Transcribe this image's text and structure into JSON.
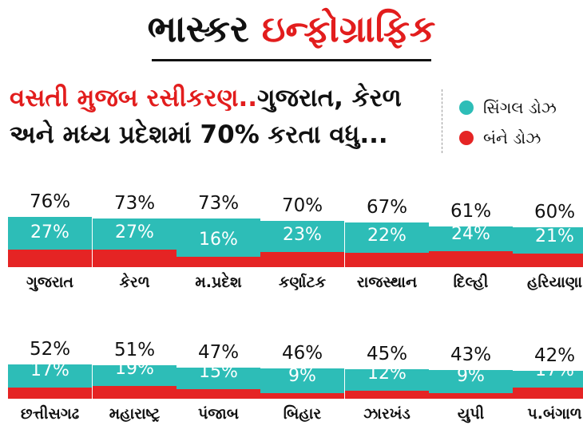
{
  "brand": {
    "part1": "ભાસ્કર",
    "part2": "ઇન્ફોગ્રાફિક"
  },
  "headline": {
    "red": "વસતી મુજબ રસીકરણ..",
    "black": "ગુજરાત, કેરળ અને મધ્ય પ્રદેશમાં 70% કરતા વધુ..."
  },
  "legend": [
    {
      "label": "સિંગલ ડોઝ",
      "color": "#2dbdb7"
    },
    {
      "label": "બંને ડોઝ",
      "color": "#e52424"
    }
  ],
  "chart_data": {
    "type": "bar",
    "title": "વસતી મુજબ રસીકરણ..ગુજરાત, કેરળ અને મધ્ય પ્રદેશમાં 70% કરતા વધુ...",
    "xlabel": "",
    "ylabel": "",
    "ylim": [
      0,
      100
    ],
    "grid": false,
    "legend_position": "top-right",
    "categories": [
      "ગુજરાત",
      "કેરળ",
      "મ.પ્રદેશ",
      "કર્ણાટક",
      "રાજસ્થાન",
      "દિલ્હી",
      "હરિયાણા",
      "છત્તીસગઢ",
      "મહારાષ્ટ્ર",
      "પંજાબ",
      "બિહાર",
      "ઝારખંડ",
      "યુપી",
      "પ.બંગાળ"
    ],
    "series": [
      {
        "name": "સિંગલ ડોઝ",
        "color": "#2dbdb7",
        "values": [
          76,
          73,
          73,
          70,
          67,
          61,
          60,
          52,
          51,
          47,
          46,
          45,
          43,
          42
        ]
      },
      {
        "name": "બંને ડોઝ",
        "color": "#e52424",
        "values": [
          27,
          27,
          16,
          23,
          22,
          24,
          21,
          17,
          19,
          15,
          9,
          12,
          9,
          17
        ]
      }
    ],
    "single_labels": [
      "76%",
      "73%",
      "73%",
      "70%",
      "67%",
      "61%",
      "60%",
      "52%",
      "51%",
      "47%",
      "46%",
      "45%",
      "43%",
      "42%"
    ],
    "both_labels": [
      "27%",
      "27%",
      "16%",
      "23%",
      "22%",
      "24%",
      "21%",
      "17%",
      "19%",
      "15%",
      "9%",
      "12%",
      "9%",
      "17%"
    ]
  }
}
